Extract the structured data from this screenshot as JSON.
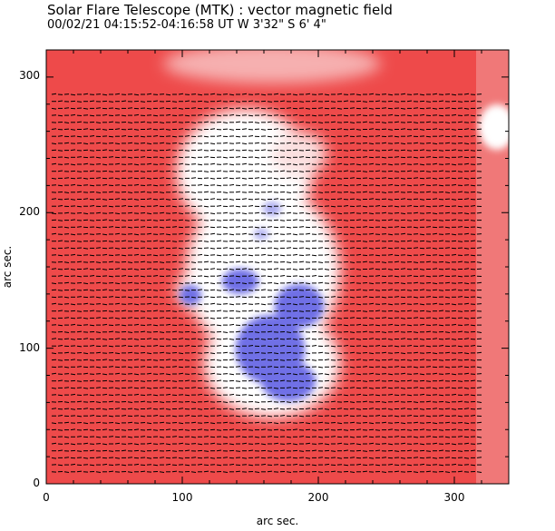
{
  "header": {
    "title": "Solar Flare Telescope (MTK) : vector magnetic field",
    "subtitle": "00/02/21  04:15:52-04:16:58 UT    W 3'32\"  S 6' 4\""
  },
  "axes": {
    "xlabel": "arc sec.",
    "ylabel": "arc sec.",
    "x_range": [
      0,
      340
    ],
    "y_range": [
      0,
      320
    ],
    "x_ticks": [
      "0",
      "100",
      "200",
      "300"
    ],
    "y_ticks": [
      "0",
      "100",
      "200",
      "300"
    ]
  },
  "colors": {
    "positive_field": "#ee4a4a",
    "negative_field": "#6f6fe6",
    "neutral": "#ffffff",
    "vectors": "#000000"
  }
}
